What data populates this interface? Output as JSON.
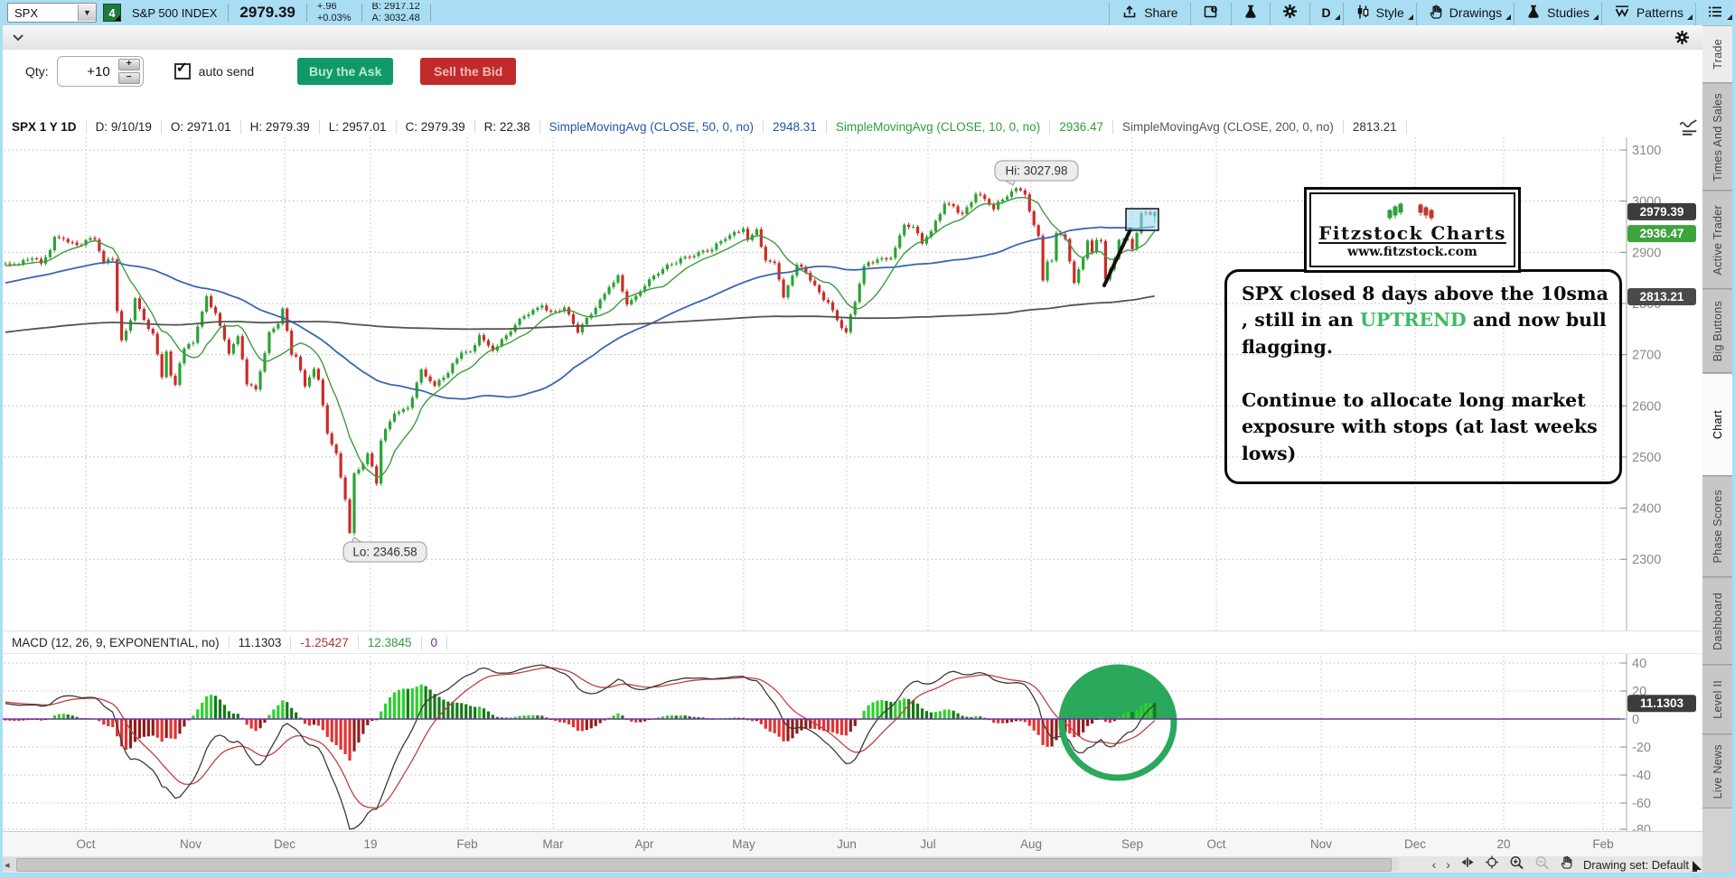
{
  "top_bar": {
    "symbol": "SPX",
    "badge": "4",
    "name": "S&P 500 INDEX",
    "last": "2979.39",
    "change": "+.96",
    "change_pct": "+0.03%",
    "bid": "B: 2917.12",
    "ask": "A: 3032.48",
    "tools": [
      {
        "icon": "share-icon",
        "label": "Share",
        "dropdown": false
      },
      {
        "icon": "panel-info-icon",
        "label": "",
        "dropdown": false
      },
      {
        "icon": "beaker-icon",
        "label": "",
        "dropdown": false
      },
      {
        "icon": "gear-icon",
        "label": "",
        "dropdown": false
      },
      {
        "icon": "",
        "label": "D",
        "dropdown": true
      },
      {
        "icon": "candles-icon",
        "label": "Style",
        "dropdown": true
      },
      {
        "icon": "hand-icon",
        "label": "Drawings",
        "dropdown": true
      },
      {
        "icon": "beaker-icon",
        "label": "Studies",
        "dropdown": true
      },
      {
        "icon": "patterns-icon",
        "label": "Patterns",
        "dropdown": true
      },
      {
        "icon": "menu-icon",
        "label": "",
        "dropdown": true
      }
    ]
  },
  "order_bar": {
    "qty_label": "Qty:",
    "qty_value": "+10",
    "auto_send_label": "auto send",
    "buy_label": "Buy the Ask",
    "sell_label": "Sell the Bid"
  },
  "chart_header": {
    "segments": [
      {
        "text": "SPX 1 Y 1D",
        "color": "#111111"
      },
      {
        "text": "D: 9/10/19",
        "color": "#222222"
      },
      {
        "text": "O: 2971.01",
        "color": "#222222"
      },
      {
        "text": "H: 2979.39",
        "color": "#222222"
      },
      {
        "text": "L: 2957.01",
        "color": "#222222"
      },
      {
        "text": "C: 2979.39",
        "color": "#222222"
      },
      {
        "text": "R: 22.38",
        "color": "#222222"
      },
      {
        "text": "SimpleMovingAvg (CLOSE, 50, 0, no)",
        "color": "#2356a8"
      },
      {
        "text": "2948.31",
        "color": "#2356a8"
      },
      {
        "text": "SimpleMovingAvg (CLOSE, 10, 0, no)",
        "color": "#2e9e3a"
      },
      {
        "text": "2936.47",
        "color": "#2e9e3a"
      },
      {
        "text": "SimpleMovingAvg (CLOSE, 200, 0, no)",
        "color": "#555555"
      },
      {
        "text": "2813.21",
        "color": "#333333"
      }
    ]
  },
  "macd_header": {
    "segments": [
      {
        "text": "MACD (12, 26, 9, EXPONENTIAL, no)",
        "color": "#222222"
      },
      {
        "text": "11.1303",
        "color": "#222222"
      },
      {
        "text": "-1.25427",
        "color": "#b03030"
      },
      {
        "text": "12.3845",
        "color": "#2e9e3a"
      },
      {
        "text": "0",
        "color": "#7030a0"
      }
    ]
  },
  "sidebar": {
    "tabs": [
      {
        "label": "Trade",
        "style": "light"
      },
      {
        "label": "Times And Sales",
        "style": ""
      },
      {
        "label": "Active Trader",
        "style": ""
      },
      {
        "label": "Big Buttons",
        "style": ""
      },
      {
        "label": "Chart",
        "style": "active"
      },
      {
        "label": "Phase Scores",
        "style": ""
      },
      {
        "label": "Dashboard",
        "style": ""
      },
      {
        "label": "Level II",
        "style": ""
      },
      {
        "label": "Live News",
        "style": ""
      }
    ]
  },
  "bottom_bar": {
    "drawing_set_label": "Drawing set: Default"
  },
  "annotations": {
    "logo_title": "Fitzstock Charts",
    "logo_url": "www.fitzstock.com",
    "note_line1_pre": "SPX closed 8 days above the 10sma , still in an ",
    "note_uptrend": "UPTREND",
    "note_line1_post": " and now bull flagging.",
    "note_para2": "Continue to allocate long market exposure with stops (at last weeks lows)"
  },
  "chart_data": {
    "type": "candlestick",
    "title": "SPX 1 Y 1D",
    "price_axis": {
      "ticks": [
        3100,
        3000,
        2900,
        2800,
        2700,
        2600,
        2500,
        2400,
        2300
      ]
    },
    "macd_axis": {
      "ticks": [
        40,
        20,
        0,
        -20,
        -40,
        -60,
        -80
      ]
    },
    "time_axis": {
      "labels": [
        "Oct",
        "Nov",
        "Dec",
        "19",
        "Feb",
        "Mar",
        "Apr",
        "May",
        "Jun",
        "Jul",
        "Aug",
        "Sep",
        "Oct",
        "Nov",
        "Dec",
        "20",
        "Feb"
      ],
      "positions": [
        95,
        211,
        315,
        410,
        517,
        612,
        713,
        823,
        937,
        1027,
        1141,
        1253,
        1346,
        1462,
        1566,
        1664,
        1774
      ]
    },
    "hi": {
      "day": 223,
      "price": 3027.98,
      "label": "Hi: 3027.98"
    },
    "lo": {
      "day": 75,
      "price": 2346.58,
      "label": "Lo: 2346.58"
    },
    "last": {
      "open": 2971.01,
      "high": 2979.39,
      "low": 2957.01,
      "close": 2979.39
    },
    "bubbles": {
      "close": {
        "text": "2979.39",
        "price": 2979.39,
        "color": "#3c3c3c"
      },
      "sma10": {
        "text": "2936.47",
        "price": 2936.47,
        "color": "#3da43d"
      },
      "sma200": {
        "text": "2813.21",
        "price": 2813.21,
        "color": "#4a4a4a"
      },
      "macd": {
        "text": "11.1303",
        "value": 11.1303,
        "color": "#3c3c3c"
      }
    },
    "overlays": [
      {
        "name": "SMA50",
        "period": 50,
        "color": "#3a66b0",
        "width": 1.8
      },
      {
        "name": "SMA10",
        "period": 10,
        "color": "#3f9b3f",
        "width": 1.4
      },
      {
        "name": "SMA200",
        "period": 200,
        "color": "#555555",
        "width": 1.8
      }
    ],
    "macd_params": {
      "fast": 12,
      "slow": 26,
      "signal": 9
    },
    "colors": {
      "up": "#2aa333",
      "down": "#cc2b27",
      "zero_line": "#7030a0",
      "hist_pos": "#2ed02e",
      "hist_pos_dim": "#157a15",
      "hist_neg": "#e23333",
      "hist_neg_dim": "#8f1d1d",
      "macd_value": "#3a3a3a",
      "macd_avg": "#c04040",
      "highlight_circle": "#2aa85c",
      "flag_box_fill": "rgba(150,215,245,0.55)"
    },
    "prehistory_anchors": [
      [
        -260,
        2496
      ],
      [
        -240,
        2557
      ],
      [
        -220,
        2599
      ],
      [
        -200,
        2673
      ],
      [
        -172,
        2872
      ],
      [
        -162,
        2581
      ],
      [
        -150,
        2744
      ],
      [
        -128,
        2605
      ],
      [
        -115,
        2670
      ],
      [
        -100,
        2720
      ],
      [
        -85,
        2700
      ],
      [
        -70,
        2735
      ],
      [
        -55,
        2775
      ],
      [
        -40,
        2821
      ],
      [
        -25,
        2850
      ],
      [
        -10,
        2871
      ],
      [
        -4,
        2878
      ],
      [
        -1,
        2877
      ]
    ],
    "close_anchors": [
      [
        0,
        2877
      ],
      [
        3,
        2888
      ],
      [
        5,
        2878
      ],
      [
        7,
        2904
      ],
      [
        8,
        2930
      ],
      [
        10,
        2926
      ],
      [
        12,
        2919
      ],
      [
        14,
        2914
      ],
      [
        15,
        2924
      ],
      [
        17,
        2925
      ],
      [
        19,
        2880
      ],
      [
        21,
        2886
      ],
      [
        22,
        2785
      ],
      [
        23,
        2728
      ],
      [
        25,
        2767
      ],
      [
        26,
        2810
      ],
      [
        28,
        2768
      ],
      [
        30,
        2741
      ],
      [
        32,
        2656
      ],
      [
        33,
        2706
      ],
      [
        34,
        2659
      ],
      [
        35,
        2641
      ],
      [
        36,
        2683
      ],
      [
        37,
        2712
      ],
      [
        39,
        2723
      ],
      [
        40,
        2755
      ],
      [
        42,
        2814
      ],
      [
        44,
        2781
      ],
      [
        47,
        2702
      ],
      [
        49,
        2736
      ],
      [
        51,
        2642
      ],
      [
        53,
        2632
      ],
      [
        56,
        2744
      ],
      [
        58,
        2760
      ],
      [
        59,
        2790
      ],
      [
        61,
        2700
      ],
      [
        62,
        2696
      ],
      [
        64,
        2638
      ],
      [
        66,
        2672
      ],
      [
        67,
        2651
      ],
      [
        69,
        2546
      ],
      [
        71,
        2507
      ],
      [
        73,
        2417
      ],
      [
        74,
        2351
      ],
      [
        75,
        2468
      ],
      [
        77,
        2486
      ],
      [
        78,
        2507
      ],
      [
        80,
        2448
      ],
      [
        81,
        2532
      ],
      [
        84,
        2585
      ],
      [
        87,
        2596
      ],
      [
        90,
        2671
      ],
      [
        93,
        2639
      ],
      [
        96,
        2664
      ],
      [
        99,
        2704
      ],
      [
        101,
        2706
      ],
      [
        103,
        2738
      ],
      [
        106,
        2708
      ],
      [
        110,
        2745
      ],
      [
        113,
        2775
      ],
      [
        117,
        2796
      ],
      [
        119,
        2784
      ],
      [
        122,
        2792
      ],
      [
        125,
        2743
      ],
      [
        129,
        2791
      ],
      [
        132,
        2832
      ],
      [
        134,
        2855
      ],
      [
        136,
        2798
      ],
      [
        138,
        2815
      ],
      [
        140,
        2834
      ],
      [
        144,
        2867
      ],
      [
        148,
        2888
      ],
      [
        152,
        2900
      ],
      [
        155,
        2905
      ],
      [
        158,
        2926
      ],
      [
        162,
        2946
      ],
      [
        163,
        2924
      ],
      [
        165,
        2945
      ],
      [
        167,
        2884
      ],
      [
        169,
        2879
      ],
      [
        171,
        2812
      ],
      [
        174,
        2876
      ],
      [
        176,
        2860
      ],
      [
        179,
        2822
      ],
      [
        181,
        2802
      ],
      [
        184,
        2752
      ],
      [
        185,
        2744
      ],
      [
        187,
        2803
      ],
      [
        189,
        2873
      ],
      [
        192,
        2886
      ],
      [
        195,
        2889
      ],
      [
        198,
        2954
      ],
      [
        200,
        2950
      ],
      [
        202,
        2917
      ],
      [
        204,
        2941
      ],
      [
        207,
        2995
      ],
      [
        209,
        2990
      ],
      [
        211,
        2975
      ],
      [
        214,
        3014
      ],
      [
        216,
        3004
      ],
      [
        218,
        2984
      ],
      [
        220,
        3003
      ],
      [
        223,
        3025
      ],
      [
        224,
        3021
      ],
      [
        225,
        3013
      ],
      [
        226,
        2980
      ],
      [
        227,
        2953
      ],
      [
        228,
        2932
      ],
      [
        229,
        2845
      ],
      [
        230,
        2882
      ],
      [
        231,
        2884
      ],
      [
        232,
        2938
      ],
      [
        234,
        2926
      ],
      [
        235,
        2882
      ],
      [
        236,
        2840
      ],
      [
        238,
        2888
      ],
      [
        239,
        2923
      ],
      [
        240,
        2900
      ],
      [
        241,
        2924
      ],
      [
        242,
        2922
      ],
      [
        243,
        2847
      ],
      [
        245,
        2888
      ],
      [
        246,
        2924
      ],
      [
        247,
        2925
      ],
      [
        248,
        2926
      ],
      [
        249,
        2906
      ],
      [
        250,
        2938
      ],
      [
        251,
        2976
      ],
      [
        252,
        2978
      ],
      [
        253,
        2974
      ],
      [
        254,
        2979.39
      ]
    ]
  }
}
